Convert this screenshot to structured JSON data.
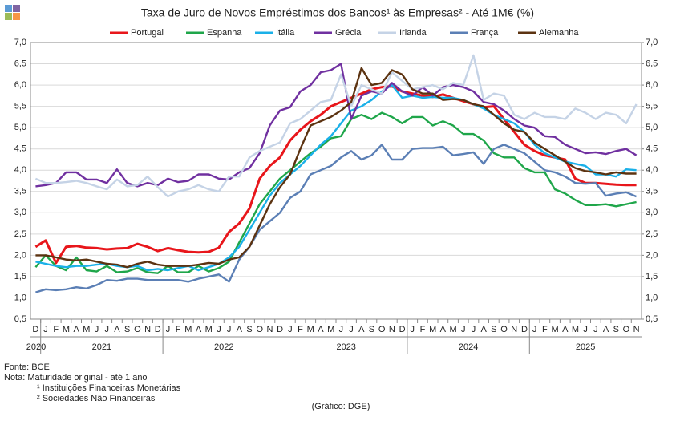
{
  "chart_data": {
    "type": "line",
    "title": "Taxa de Juro de Novos Empréstimos dos Bancos¹ às Empresas² - Até 1M€ (%)",
    "categories": [
      "D",
      "J",
      "F",
      "M",
      "A",
      "M",
      "J",
      "J",
      "A",
      "S",
      "O",
      "N",
      "D",
      "J",
      "F",
      "M",
      "A",
      "M",
      "J",
      "J",
      "A",
      "S",
      "O",
      "N",
      "D",
      "J",
      "F",
      "M",
      "A",
      "M",
      "J",
      "J",
      "A",
      "S",
      "O",
      "N",
      "D",
      "J",
      "F",
      "M",
      "A",
      "M",
      "J",
      "J",
      "A",
      "S",
      "O",
      "N",
      "D",
      "J",
      "F",
      "M",
      "A",
      "M",
      "J",
      "J",
      "A",
      "S",
      "O",
      "N"
    ],
    "years": [
      "2020",
      "2021",
      "2022",
      "2023",
      "2024",
      "2025"
    ],
    "series": [
      {
        "name": "Portugal",
        "color": "#e8161b",
        "values": [
          2.2,
          2.35,
          1.82,
          2.2,
          2.22,
          2.18,
          2.17,
          2.14,
          2.16,
          2.17,
          2.27,
          2.2,
          2.1,
          2.17,
          2.12,
          2.08,
          2.07,
          2.08,
          2.18,
          2.55,
          2.75,
          3.1,
          3.8,
          4.1,
          4.3,
          4.7,
          4.95,
          5.15,
          5.3,
          5.5,
          5.6,
          5.7,
          5.8,
          5.9,
          5.95,
          5.97,
          5.85,
          5.8,
          5.75,
          5.72,
          5.78,
          5.7,
          5.62,
          5.55,
          5.48,
          5.5,
          5.2,
          4.9,
          4.6,
          4.45,
          4.35,
          4.3,
          4.25,
          3.8,
          3.7,
          3.7,
          3.68,
          3.66,
          3.65,
          3.65
        ]
      },
      {
        "name": "Espanha",
        "color": "#1fa64a",
        "values": [
          1.72,
          2.0,
          1.75,
          1.65,
          1.95,
          1.65,
          1.62,
          1.75,
          1.6,
          1.62,
          1.7,
          1.6,
          1.58,
          1.75,
          1.6,
          1.6,
          1.75,
          1.62,
          1.7,
          1.85,
          2.3,
          2.75,
          3.2,
          3.5,
          3.8,
          4.0,
          4.2,
          4.4,
          4.55,
          4.75,
          4.8,
          5.2,
          5.3,
          5.2,
          5.35,
          5.25,
          5.1,
          5.25,
          5.25,
          5.05,
          5.15,
          5.05,
          4.85,
          4.85,
          4.7,
          4.4,
          4.3,
          4.3,
          4.05,
          3.95,
          3.95,
          3.55,
          3.45,
          3.3,
          3.18,
          3.18,
          3.2,
          3.15,
          3.2,
          3.25
        ]
      },
      {
        "name": "Itália",
        "color": "#1ab0e8",
        "values": [
          1.85,
          1.8,
          1.75,
          1.72,
          1.75,
          1.75,
          1.78,
          1.8,
          1.75,
          1.72,
          1.75,
          1.65,
          1.68,
          1.65,
          1.7,
          1.75,
          1.65,
          1.72,
          1.8,
          1.95,
          2.2,
          2.6,
          3.0,
          3.4,
          3.7,
          3.9,
          4.1,
          4.35,
          4.6,
          4.8,
          5.1,
          5.4,
          5.5,
          5.65,
          5.85,
          6.0,
          5.7,
          5.75,
          5.7,
          5.72,
          5.7,
          5.7,
          5.65,
          5.55,
          5.45,
          5.3,
          5.2,
          5.1,
          4.9,
          4.6,
          4.4,
          4.3,
          4.2,
          4.15,
          4.1,
          3.9,
          3.9,
          3.85,
          4.02,
          4.0
        ]
      },
      {
        "name": "Grécia",
        "color": "#7030a0",
        "values": [
          3.62,
          3.65,
          3.7,
          3.95,
          3.95,
          3.78,
          3.78,
          3.7,
          4.02,
          3.7,
          3.62,
          3.7,
          3.65,
          3.8,
          3.72,
          3.75,
          3.9,
          3.9,
          3.8,
          3.78,
          3.95,
          4.05,
          4.4,
          5.05,
          5.4,
          5.48,
          5.85,
          6.0,
          6.3,
          6.35,
          6.5,
          5.2,
          5.75,
          5.85,
          5.8,
          6.05,
          5.85,
          5.75,
          5.95,
          5.75,
          5.95,
          6.0,
          5.95,
          5.85,
          5.6,
          5.55,
          5.4,
          5.2,
          5.05,
          5.0,
          4.8,
          4.78,
          4.6,
          4.5,
          4.4,
          4.42,
          4.38,
          4.45,
          4.5,
          4.35
        ]
      },
      {
        "name": "Irlanda",
        "color": "#c5d3e6",
        "values": [
          3.8,
          3.7,
          3.7,
          3.72,
          3.75,
          3.7,
          3.62,
          3.55,
          3.78,
          3.62,
          3.65,
          3.85,
          3.6,
          3.38,
          3.5,
          3.55,
          3.65,
          3.55,
          3.5,
          3.85,
          3.85,
          4.3,
          4.45,
          4.55,
          4.65,
          5.1,
          5.2,
          5.4,
          5.6,
          5.65,
          6.25,
          5.5,
          6.0,
          5.9,
          5.8,
          6.3,
          6.1,
          5.9,
          5.95,
          6.0,
          5.9,
          6.05,
          6.0,
          6.7,
          5.65,
          5.8,
          5.75,
          5.3,
          5.2,
          5.35,
          5.25,
          5.25,
          5.2,
          5.45,
          5.35,
          5.2,
          5.35,
          5.3,
          5.1,
          5.55
        ]
      },
      {
        "name": "França",
        "color": "#5b7fb5",
        "values": [
          1.13,
          1.2,
          1.18,
          1.2,
          1.25,
          1.22,
          1.3,
          1.42,
          1.4,
          1.45,
          1.45,
          1.42,
          1.42,
          1.42,
          1.42,
          1.38,
          1.45,
          1.5,
          1.55,
          1.38,
          1.9,
          2.2,
          2.6,
          2.8,
          3.0,
          3.35,
          3.5,
          3.9,
          4.0,
          4.1,
          4.3,
          4.45,
          4.25,
          4.35,
          4.6,
          4.25,
          4.25,
          4.5,
          4.52,
          4.52,
          4.55,
          4.35,
          4.38,
          4.42,
          4.15,
          4.5,
          4.6,
          4.5,
          4.4,
          4.2,
          4.0,
          3.95,
          3.85,
          3.7,
          3.68,
          3.7,
          3.4,
          3.45,
          3.48,
          3.38
        ]
      },
      {
        "name": "Alemanha",
        "color": "#5c3311",
        "values": [
          2.0,
          2.0,
          1.95,
          1.9,
          1.88,
          1.9,
          1.85,
          1.8,
          1.78,
          1.72,
          1.8,
          1.85,
          1.78,
          1.75,
          1.75,
          1.75,
          1.78,
          1.82,
          1.8,
          1.9,
          1.95,
          2.2,
          2.7,
          3.2,
          3.6,
          3.9,
          4.5,
          5.05,
          5.15,
          5.25,
          5.4,
          5.6,
          6.4,
          6.0,
          6.05,
          6.35,
          6.25,
          5.9,
          5.8,
          5.8,
          5.65,
          5.67,
          5.65,
          5.55,
          5.5,
          5.3,
          5.1,
          4.95,
          4.9,
          4.65,
          4.5,
          4.35,
          4.2,
          4.05,
          3.98,
          3.95,
          3.9,
          3.95,
          3.92,
          3.92
        ]
      }
    ],
    "ylim": [
      0.5,
      7.0
    ],
    "yticks": [
      {
        "value": 0.5,
        "label": "0,5"
      },
      {
        "value": 1.0,
        "label": "1,0"
      },
      {
        "value": 1.5,
        "label": "1,5"
      },
      {
        "value": 2.0,
        "label": "2,0"
      },
      {
        "value": 2.5,
        "label": "2,5"
      },
      {
        "value": 3.0,
        "label": "3,0"
      },
      {
        "value": 3.5,
        "label": "3,5"
      },
      {
        "value": 4.0,
        "label": "4,0"
      },
      {
        "value": 4.5,
        "label": "4,5"
      },
      {
        "value": 5.0,
        "label": "5,0"
      },
      {
        "value": 5.5,
        "label": "5,5"
      },
      {
        "value": 6.0,
        "label": "6,0"
      },
      {
        "value": 6.5,
        "label": "6,5"
      },
      {
        "value": 7.0,
        "label": "7,0"
      }
    ],
    "y2lim": [
      0.5,
      7.0
    ],
    "y2ticks": [
      {
        "value": 0.5,
        "label": "0,5"
      },
      {
        "value": 1.0,
        "label": "1,0"
      },
      {
        "value": 1.5,
        "label": "1,5"
      },
      {
        "value": 2.0,
        "label": "2,0"
      },
      {
        "value": 2.5,
        "label": "2,5"
      },
      {
        "value": 3.0,
        "label": "3,0"
      },
      {
        "value": 3.5,
        "label": "3,5"
      },
      {
        "value": 4.0,
        "label": "4,0"
      },
      {
        "value": 4.5,
        "label": "4,5"
      },
      {
        "value": 5.0,
        "label": "5,0"
      },
      {
        "value": 5.5,
        "label": "5,5"
      },
      {
        "value": 6.0,
        "label": "6,0"
      },
      {
        "value": 6.5,
        "label": "6,5"
      },
      {
        "value": 7.0,
        "label": "7,0"
      }
    ],
    "grid": true,
    "legend": "top",
    "notes": [
      "Fonte: BCE",
      "Nota: Maturidade original - até 1 ano",
      "¹ Instituições Financeiras Monetárias",
      "² Sociedades Não Financeiras"
    ],
    "credit": "(Gráfico: DGE)"
  }
}
